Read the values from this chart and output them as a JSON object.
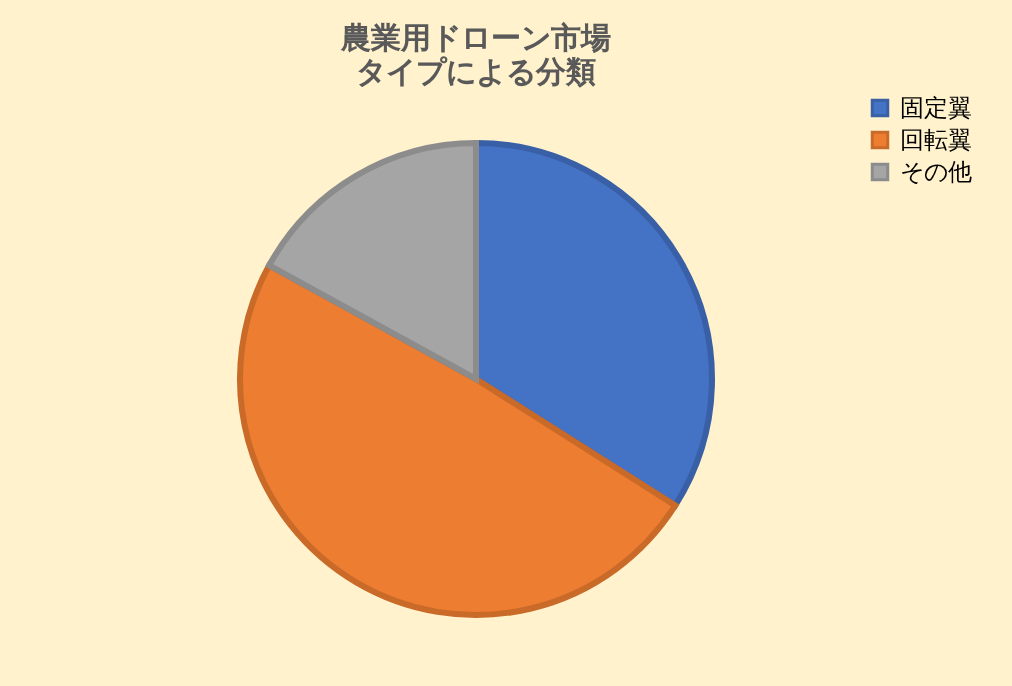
{
  "chart_data": {
    "type": "pie",
    "title": [
      "農業用ドローン市場",
      "タイプによる分類"
    ],
    "categories": [
      "固定翼",
      "回転翼",
      "その他"
    ],
    "values": [
      34,
      49,
      17
    ],
    "colors": [
      "#4472c4",
      "#ed7d31",
      "#a5a5a5"
    ],
    "legend": "right"
  }
}
